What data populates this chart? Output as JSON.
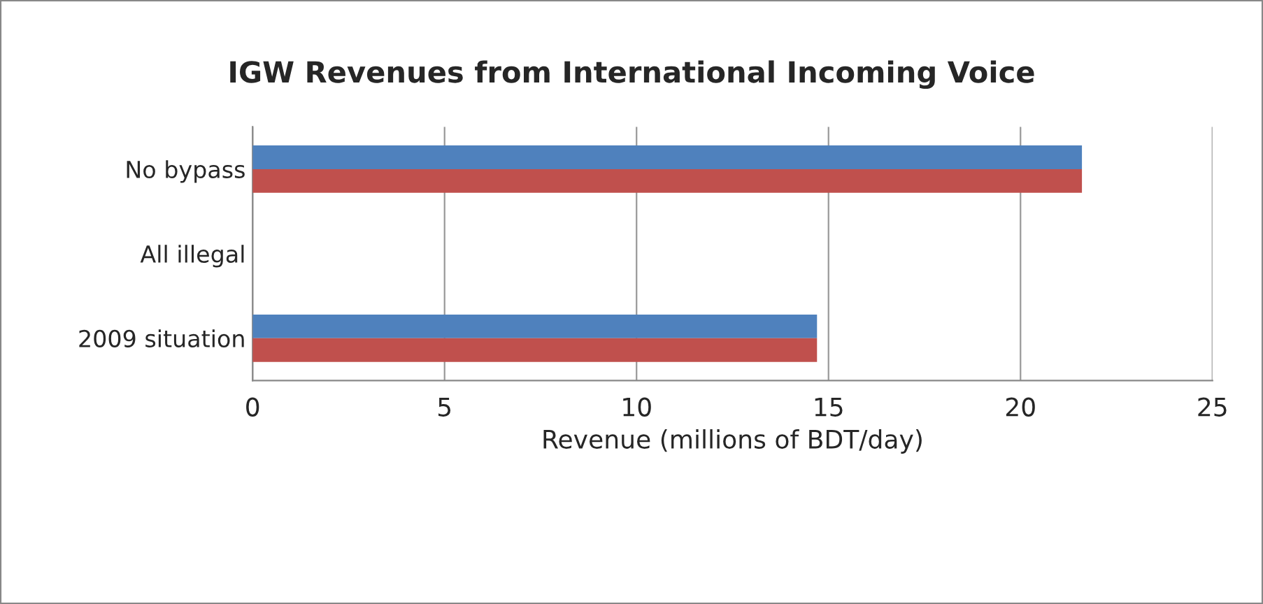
{
  "chart_data": {
    "type": "bar",
    "orientation": "horizontal",
    "title": "IGW Revenues from International Incoming Voice",
    "xlabel": "Revenue (millions of BDT/day)",
    "categories": [
      "No bypass",
      "All illegal",
      "2009 situation"
    ],
    "series": [
      {
        "color": "#4f81bd",
        "values": [
          21.6,
          null,
          14.7
        ]
      },
      {
        "color": "#c0504d",
        "values": [
          21.6,
          null,
          14.7
        ]
      }
    ],
    "xlim": [
      0,
      25
    ],
    "xticks": [
      0,
      5,
      10,
      15,
      20,
      25
    ],
    "grid": "x"
  }
}
